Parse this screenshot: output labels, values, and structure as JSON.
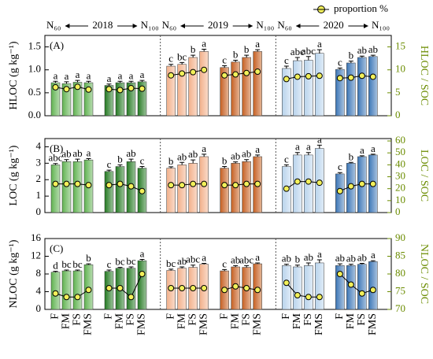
{
  "header": {
    "years": [
      "2018",
      "2019",
      "2020"
    ],
    "n_low": "N₆₀",
    "n_high": "N₁₀₀"
  },
  "legend": {
    "label": "proportion %",
    "marker_color": "#f2f05a"
  },
  "chart_data": [
    {
      "type": "bar",
      "panel": "(A)",
      "ylabel": "HLOC (g kg⁻¹)",
      "y2label": "HLOC / SOC",
      "ylim": [
        0,
        1.75
      ],
      "yticks": [
        {
          "value": 0,
          "label": "0.0"
        },
        {
          "value": 0.5,
          "label": "0.5"
        },
        {
          "value": 1,
          "label": "1.0"
        },
        {
          "value": 1.5,
          "label": "1.5"
        }
      ],
      "y2lim": [
        0,
        17.5
      ],
      "y2ticks": [
        0,
        5,
        10,
        15
      ],
      "groups": [
        {
          "color": "#5fb24f",
          "values": [
            0.72,
            0.7,
            0.73,
            0.72
          ],
          "errors": [
            0.03,
            0.04,
            0.04,
            0.03
          ],
          "letters": [
            "a",
            "a",
            "a",
            "a"
          ],
          "proportion": [
            6.2,
            5.8,
            6.3,
            5.7
          ]
        },
        {
          "color": "#1f7a1f",
          "values": [
            0.66,
            0.72,
            0.72,
            0.74
          ],
          "errors": [
            0.03,
            0.03,
            0.03,
            0.03
          ],
          "letters": [
            "a",
            "a",
            "a",
            "a"
          ],
          "proportion": [
            5.8,
            5.6,
            6.0,
            5.9
          ]
        },
        {
          "color": "#f2b08a",
          "values": [
            1.08,
            1.12,
            1.27,
            1.4
          ],
          "errors": [
            0.04,
            0.04,
            0.05,
            0.05
          ],
          "letters": [
            "c",
            "bc",
            "b",
            "a"
          ],
          "proportion": [
            8.8,
            9.2,
            9.5,
            10.0
          ]
        },
        {
          "color": "#c45f1a",
          "values": [
            1.05,
            1.17,
            1.27,
            1.4
          ],
          "errors": [
            0.04,
            0.04,
            0.05,
            0.04
          ],
          "letters": [
            "c",
            "b",
            "b",
            "a"
          ],
          "proportion": [
            8.8,
            9.0,
            9.3,
            9.6
          ]
        },
        {
          "color": "#b8d3ec",
          "values": [
            1.03,
            1.2,
            1.21,
            1.36
          ],
          "errors": [
            0.05,
            0.07,
            0.08,
            0.08
          ],
          "letters": [
            "c",
            "abc",
            "abc",
            "a"
          ],
          "proportion": [
            8.0,
            8.5,
            8.6,
            8.7
          ]
        },
        {
          "color": "#3b76b6",
          "values": [
            1.01,
            1.15,
            1.27,
            1.29
          ],
          "errors": [
            0.03,
            0.04,
            0.03,
            0.03
          ],
          "letters": [
            "c",
            "b",
            "ab",
            "ab"
          ],
          "proportion": [
            8.2,
            8.3,
            8.7,
            8.5
          ]
        }
      ]
    },
    {
      "type": "bar",
      "panel": "(B)",
      "ylabel": "LOC (g kg⁻¹)",
      "y2label": "LOC / SOC",
      "ylim": [
        0,
        4.5
      ],
      "yticks": [
        0,
        1,
        2,
        3,
        4
      ],
      "y2lim": [
        0,
        62
      ],
      "y2ticks": [
        0,
        10,
        20,
        30,
        40,
        50,
        60
      ],
      "groups": [
        {
          "color": "#5fb24f",
          "values": [
            2.9,
            3.1,
            3.1,
            3.2
          ],
          "errors": [
            0.08,
            0.12,
            0.15,
            0.08
          ],
          "letters": [
            "abc",
            "ab",
            "ab",
            "a"
          ],
          "proportion": [
            24,
            24,
            24,
            23
          ]
        },
        {
          "color": "#1f7a1f",
          "values": [
            2.5,
            2.8,
            3.1,
            2.7
          ],
          "errors": [
            0.08,
            0.1,
            0.15,
            0.1
          ],
          "letters": [
            "c",
            "b",
            "ab",
            "c"
          ],
          "proportion": [
            23,
            24,
            22,
            18
          ]
        },
        {
          "color": "#f2b08a",
          "values": [
            2.7,
            2.9,
            3.0,
            3.4
          ],
          "errors": [
            0.08,
            0.15,
            0.2,
            0.15
          ],
          "letters": [
            "b",
            "ab",
            "ab",
            "a"
          ],
          "proportion": [
            23,
            23,
            24,
            24
          ]
        },
        {
          "color": "#c45f1a",
          "values": [
            2.7,
            3.0,
            3.1,
            3.4
          ],
          "errors": [
            0.1,
            0.08,
            0.12,
            0.1
          ],
          "letters": [
            "b",
            "ab",
            "ab",
            "a"
          ],
          "proportion": [
            23,
            23,
            24,
            24
          ]
        },
        {
          "color": "#b8d3ec",
          "values": [
            2.8,
            3.5,
            3.5,
            3.9
          ],
          "errors": [
            0.1,
            0.15,
            0.15,
            0.2
          ],
          "letters": [
            "c",
            "a",
            "a",
            "a"
          ],
          "proportion": [
            20,
            26,
            26,
            25
          ]
        },
        {
          "color": "#3b76b6",
          "values": [
            2.35,
            3.0,
            3.4,
            3.5
          ],
          "errors": [
            0.08,
            0.05,
            0.05,
            0.05
          ],
          "letters": [
            "c",
            "b",
            "a",
            "a"
          ],
          "proportion": [
            18,
            22,
            24,
            24
          ]
        }
      ]
    },
    {
      "type": "bar",
      "panel": "(C)",
      "ylabel": "NLOC (g kg⁻¹)",
      "y2label": "NLOC / SOC",
      "categories": [
        "F",
        "FM",
        "FS",
        "FMS"
      ],
      "ylim": [
        0,
        16
      ],
      "yticks": [
        0,
        4,
        8,
        12,
        16
      ],
      "y2lim": [
        70,
        90
      ],
      "y2ticks": [
        70,
        75,
        80,
        85,
        90
      ],
      "groups": [
        {
          "color": "#5fb24f",
          "values": [
            8.4,
            8.7,
            8.7,
            10.1
          ],
          "errors": [
            0.2,
            0.2,
            0.2,
            0.2
          ],
          "letters": [
            "d",
            "bc",
            "bc",
            "b"
          ],
          "proportion": [
            74.5,
            73.5,
            73.5,
            75.5
          ]
        },
        {
          "color": "#1f7a1f",
          "values": [
            8.6,
            9.3,
            9.3,
            11.0
          ],
          "errors": [
            0.3,
            0.2,
            0.3,
            0.3
          ],
          "letters": [
            "c",
            "bc",
            "bc",
            "a"
          ],
          "proportion": [
            76,
            76,
            73.5,
            80
          ]
        },
        {
          "color": "#f2b08a",
          "values": [
            8.8,
            9.3,
            9.5,
            10.2
          ],
          "errors": [
            0.3,
            0.3,
            0.5,
            0.2
          ],
          "letters": [
            "bc",
            "ab",
            "abc",
            "a"
          ],
          "proportion": [
            76,
            76,
            76,
            76
          ]
        },
        {
          "color": "#c45f1a",
          "values": [
            8.7,
            9.6,
            9.5,
            10.3
          ],
          "errors": [
            0.3,
            0.3,
            0.4,
            0.2
          ],
          "letters": [
            "c",
            "ab",
            "abc",
            "a"
          ],
          "proportion": [
            75.5,
            76.5,
            76,
            75.5
          ]
        },
        {
          "color": "#b8d3ec",
          "values": [
            9.9,
            9.6,
            9.9,
            10.5
          ],
          "errors": [
            0.3,
            0.4,
            0.6,
            0.7
          ],
          "letters": [
            "ab",
            "b",
            "ab",
            "a"
          ],
          "proportion": [
            77.5,
            74,
            73.5,
            73.5
          ]
        },
        {
          "color": "#3b76b6",
          "values": [
            9.9,
            9.9,
            10.2,
            10.8
          ],
          "errors": [
            0.4,
            0.3,
            0.2,
            0.2
          ],
          "letters": [
            "ab",
            "ab",
            "ab",
            "a"
          ],
          "proportion": [
            80,
            77,
            74.5,
            75.5
          ]
        }
      ]
    }
  ]
}
